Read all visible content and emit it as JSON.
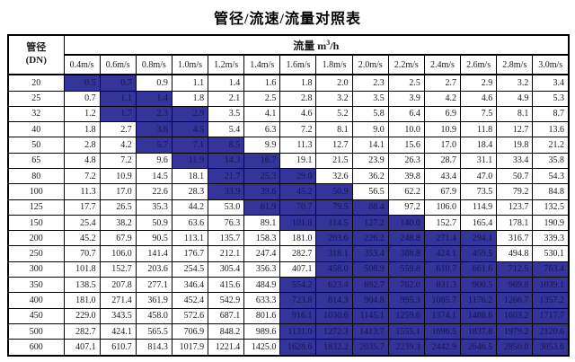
{
  "title": "管径/流速/流量对照表",
  "colors": {
    "highlight_bg": "#34349B",
    "highlight_text": "#15154E",
    "border": "#000000",
    "background": "#FFFFFF"
  },
  "table": {
    "corner_header": {
      "line1": "管径",
      "line2": "(DN)"
    },
    "flow_header": {
      "prefix": "流量 m",
      "sup": "3",
      "suffix": "/h"
    },
    "velocity_headers": [
      "0.4m/s",
      "0.6m/s",
      "0.8m/s",
      "1.0m/s",
      "1.2m/s",
      "1.4m/s",
      "1.6m/s",
      "1.8m/s",
      "2.0m/s",
      "2.2m/s",
      "2.4m/s",
      "2.6m/s",
      "2.8m/s",
      "3.0m/s"
    ],
    "rows": [
      {
        "dn": "20",
        "values": [
          "0.5",
          "0.7",
          "0.9",
          "1.1",
          "1.4",
          "1.6",
          "1.8",
          "2.0",
          "2.3",
          "2.5",
          "2.7",
          "2.9",
          "3.2",
          "3.4"
        ],
        "highlight": [
          0,
          1
        ]
      },
      {
        "dn": "25",
        "values": [
          "0.7",
          "1.1",
          "1.4",
          "1.8",
          "2.1",
          "2.5",
          "2.8",
          "3.2",
          "3.5",
          "3.9",
          "4.2",
          "4.6",
          "4.9",
          "5.3"
        ],
        "highlight": [
          1,
          2
        ]
      },
      {
        "dn": "32",
        "values": [
          "1.2",
          "1.7",
          "2.3",
          "2.9",
          "3.5",
          "4.1",
          "4.6",
          "5.2",
          "5.8",
          "6.4",
          "6.9",
          "7.5",
          "8.1",
          "8.7"
        ],
        "highlight": [
          1,
          2,
          3
        ]
      },
      {
        "dn": "40",
        "values": [
          "1.8",
          "2.7",
          "3.6",
          "4.5",
          "5.4",
          "6.3",
          "7.2",
          "8.1",
          "9.0",
          "10.0",
          "10.9",
          "11.8",
          "12.7",
          "13.6"
        ],
        "highlight": [
          2,
          3
        ]
      },
      {
        "dn": "50",
        "values": [
          "2.8",
          "4.2",
          "5.7",
          "7.1",
          "8.5",
          "9.9",
          "11.3",
          "12.7",
          "14.1",
          "15.6",
          "17.0",
          "18.4",
          "19.8",
          "21.2"
        ],
        "highlight": [
          2,
          3,
          4
        ]
      },
      {
        "dn": "65",
        "values": [
          "4.8",
          "7.2",
          "9.6",
          "11.9",
          "14.3",
          "16.7",
          "19.1",
          "21.5",
          "23.9",
          "26.3",
          "28.7",
          "31.1",
          "33.4",
          "35.8"
        ],
        "highlight": [
          3,
          4,
          5
        ]
      },
      {
        "dn": "80",
        "values": [
          "7.2",
          "10.9",
          "14.5",
          "18.1",
          "21.7",
          "25.3",
          "29.0",
          "32.6",
          "36.2",
          "39.8",
          "43.4",
          "47.0",
          "50.7",
          "54.3"
        ],
        "highlight": [
          4,
          5,
          6
        ]
      },
      {
        "dn": "100",
        "values": [
          "11.3",
          "17.0",
          "22.6",
          "28.3",
          "33.9",
          "39.6",
          "45.2",
          "50.9",
          "56.5",
          "62.2",
          "67.9",
          "73.5",
          "79.2",
          "84.8"
        ],
        "highlight": [
          4,
          5,
          6,
          7
        ]
      },
      {
        "dn": "125",
        "values": [
          "17.7",
          "26.5",
          "35.3",
          "44.2",
          "53.0",
          "61.9",
          "70.7",
          "79.5",
          "88.4",
          "97.2",
          "106.0",
          "114.9",
          "123.7",
          "132.5"
        ],
        "highlight": [
          5,
          6,
          7,
          8
        ]
      },
      {
        "dn": "150",
        "values": [
          "25.4",
          "38.2",
          "50.9",
          "63.6",
          "76.3",
          "89.1",
          "101.8",
          "114.5",
          "127.2",
          "140.0",
          "152.7",
          "165.4",
          "178.1",
          "190.9"
        ],
        "highlight": [
          6,
          7,
          8,
          9
        ]
      },
      {
        "dn": "200",
        "values": [
          "45.2",
          "67.9",
          "90.5",
          "113.1",
          "135.7",
          "158.3",
          "181.0",
          "203.6",
          "226.2",
          "248.8",
          "271.4",
          "294.1",
          "316.7",
          "339.3"
        ],
        "highlight": [
          7,
          8,
          9,
          10,
          11
        ]
      },
      {
        "dn": "250",
        "values": [
          "70.7",
          "106.0",
          "141.4",
          "176.7",
          "212.1",
          "247.4",
          "282.7",
          "318.1",
          "353.4",
          "388.8",
          "424.1",
          "459.5",
          "494.8",
          "530.1"
        ],
        "highlight": [
          7,
          8,
          9,
          10,
          11
        ]
      },
      {
        "dn": "300",
        "values": [
          "101.8",
          "152.7",
          "203.6",
          "254.5",
          "305.4",
          "356.3",
          "407.1",
          "458.0",
          "508.9",
          "559.8",
          "610.7",
          "661.6",
          "712.5",
          "763.4"
        ],
        "highlight": [
          7,
          8,
          9,
          10,
          11,
          12,
          13
        ]
      },
      {
        "dn": "350",
        "values": [
          "138.5",
          "207.8",
          "277.1",
          "346.4",
          "415.6",
          "484.9",
          "554.2",
          "623.4",
          "692.7",
          "762.0",
          "831.3",
          "900.5",
          "969.8",
          "1039.1"
        ],
        "highlight": [
          6,
          7,
          8,
          9,
          10,
          11,
          12,
          13
        ]
      },
      {
        "dn": "400",
        "values": [
          "181.0",
          "271.4",
          "361.9",
          "452.4",
          "542.9",
          "633.3",
          "723.8",
          "814.3",
          "904.8",
          "995.3",
          "1085.7",
          "1176.2",
          "1266.7",
          "1357.2"
        ],
        "highlight": [
          6,
          7,
          8,
          9,
          10,
          11,
          12,
          13
        ]
      },
      {
        "dn": "450",
        "values": [
          "229.0",
          "343.5",
          "458.0",
          "572.6",
          "687.1",
          "801.6",
          "916.1",
          "1030.6",
          "1145.1",
          "1259.6",
          "1374.1",
          "1488.6",
          "1603.2",
          "1717.7"
        ],
        "highlight": [
          6,
          7,
          8,
          9,
          10,
          11,
          12,
          13
        ]
      },
      {
        "dn": "500",
        "values": [
          "282.7",
          "424.1",
          "565.5",
          "706.9",
          "848.2",
          "989.6",
          "1131.0",
          "1272.3",
          "1413.7",
          "1555.1",
          "1696.5",
          "1837.8",
          "1979.2",
          "2120.6"
        ],
        "highlight": [
          6,
          7,
          8,
          9,
          10,
          11,
          12,
          13
        ]
      },
      {
        "dn": "600",
        "values": [
          "407.1",
          "610.7",
          "814.3",
          "1017.9",
          "1221.4",
          "1425.0",
          "1628.6",
          "1832.2",
          "2035.7",
          "2239.3",
          "2442.9",
          "2646.5",
          "2850.0",
          "3053.6"
        ],
        "highlight": [
          6,
          7,
          8,
          9,
          10,
          11,
          12,
          13
        ]
      }
    ]
  }
}
